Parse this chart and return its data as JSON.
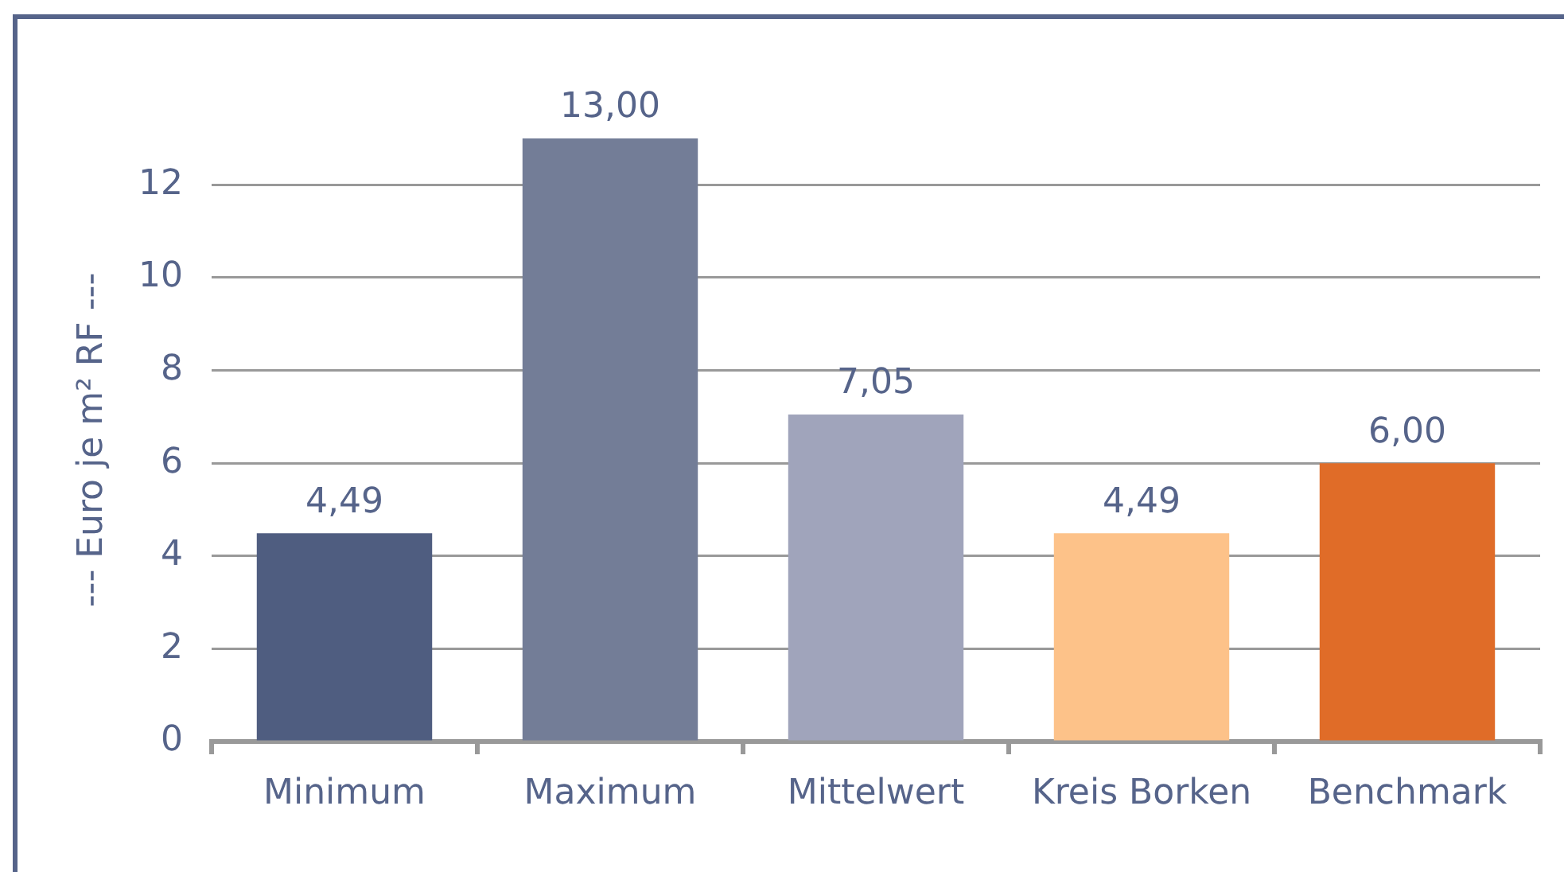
{
  "chart_data": {
    "type": "bar",
    "ylabel": "--- Euro je m² RF ---",
    "categories": [
      "Minimum",
      "Maximum",
      "Mittelwert",
      "Kreis Borken",
      "Benchmark"
    ],
    "values": [
      4.49,
      13,
      7.05,
      4.49,
      6
    ],
    "colors": [
      "#4f5d80",
      "#737d97",
      "#a0a4bb",
      "#fdc289",
      "#e06c28"
    ],
    "value_labels": [
      "4,49",
      "13,00",
      "7,05",
      "4,49",
      "6,00"
    ],
    "ylim": [
      0,
      13
    ],
    "yticks": [
      0,
      2,
      4,
      6,
      8,
      10,
      12
    ],
    "grid": "y"
  }
}
